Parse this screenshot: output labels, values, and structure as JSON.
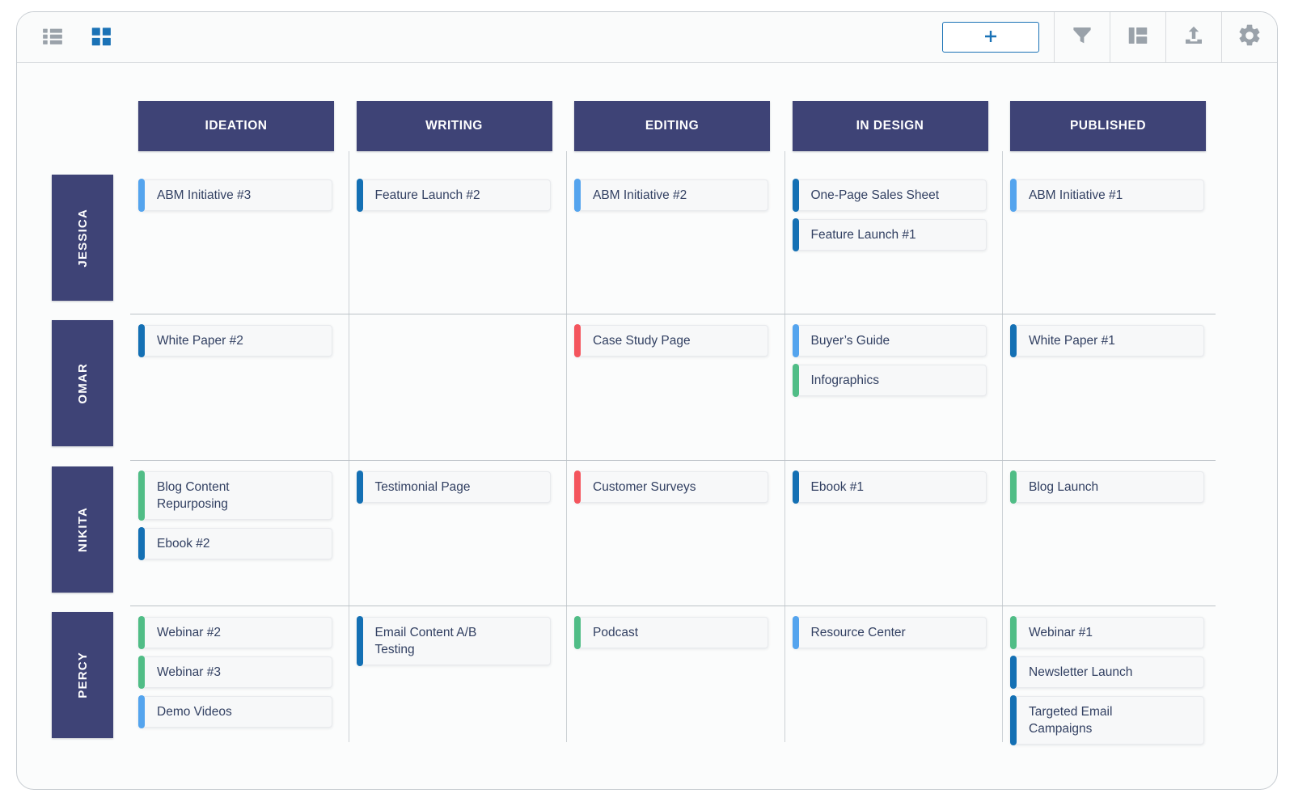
{
  "toolbar": {
    "add_button_label": "+",
    "buttons": [
      {
        "name": "list-view",
        "icon": "list-icon",
        "active": false
      },
      {
        "name": "board-view",
        "icon": "board-grid-icon",
        "active": true
      },
      {
        "name": "add",
        "icon": "plus-icon"
      },
      {
        "name": "filter",
        "icon": "filter-icon"
      },
      {
        "name": "swimlane-view",
        "icon": "swimlane-icon"
      },
      {
        "name": "export",
        "icon": "upload-icon"
      },
      {
        "name": "settings",
        "icon": "gear-icon"
      }
    ]
  },
  "colors": {
    "header_bg": "#3e4376",
    "accent_lightblue": "#54a4ee",
    "accent_darkblue": "#1470b4",
    "accent_green": "#50bd86",
    "accent_red": "#f4555d",
    "toolbar_icon_gray": "#9aa2aa",
    "toolbar_icon_blue": "#1a72b6",
    "card_bg": "#f7f8f9",
    "card_text": "#324062",
    "grid_line": "#ccd1d5"
  },
  "board": {
    "columns": [
      "IDEATION",
      "WRITING",
      "EDITING",
      "IN DESIGN",
      "PUBLISHED"
    ],
    "swimlanes": [
      {
        "label": "JESSICA",
        "cells": [
          [
            {
              "title": "ABM Initiative #3",
              "accent": "lightblue"
            }
          ],
          [
            {
              "title": "Feature Launch #2",
              "accent": "darkblue"
            }
          ],
          [
            {
              "title": "ABM Initiative #2",
              "accent": "lightblue"
            }
          ],
          [
            {
              "title": "One-Page Sales Sheet",
              "accent": "darkblue"
            },
            {
              "title": "Feature Launch #1",
              "accent": "darkblue"
            }
          ],
          [
            {
              "title": "ABM Initiative #1",
              "accent": "lightblue"
            }
          ]
        ]
      },
      {
        "label": "OMAR",
        "cells": [
          [
            {
              "title": "White Paper #2",
              "accent": "darkblue"
            }
          ],
          [],
          [
            {
              "title": "Case Study Page",
              "accent": "red"
            }
          ],
          [
            {
              "title": "Buyer’s Guide",
              "accent": "lightblue"
            },
            {
              "title": "Infographics",
              "accent": "green"
            }
          ],
          [
            {
              "title": "White Paper #1",
              "accent": "darkblue"
            }
          ]
        ]
      },
      {
        "label": "NIKITA",
        "cells": [
          [
            {
              "title": "Blog Content Repurposing",
              "accent": "green"
            },
            {
              "title": "Ebook #2",
              "accent": "darkblue"
            }
          ],
          [
            {
              "title": "Testimonial Page",
              "accent": "darkblue"
            }
          ],
          [
            {
              "title": "Customer Surveys",
              "accent": "red"
            }
          ],
          [
            {
              "title": "Ebook #1",
              "accent": "darkblue"
            }
          ],
          [
            {
              "title": "Blog Launch",
              "accent": "green"
            }
          ]
        ]
      },
      {
        "label": "PERCY",
        "cells": [
          [
            {
              "title": "Webinar #2",
              "accent": "green"
            },
            {
              "title": "Webinar #3",
              "accent": "green"
            },
            {
              "title": "Demo Videos",
              "accent": "lightblue"
            }
          ],
          [
            {
              "title": "Email Content A/B Testing",
              "accent": "darkblue"
            }
          ],
          [
            {
              "title": "Podcast",
              "accent": "green"
            }
          ],
          [
            {
              "title": "Resource Center",
              "accent": "lightblue"
            }
          ],
          [
            {
              "title": "Webinar #1",
              "accent": "green"
            },
            {
              "title": "Newsletter Launch",
              "accent": "darkblue"
            },
            {
              "title": "Targeted Email Campaigns",
              "accent": "darkblue"
            }
          ]
        ]
      }
    ]
  }
}
